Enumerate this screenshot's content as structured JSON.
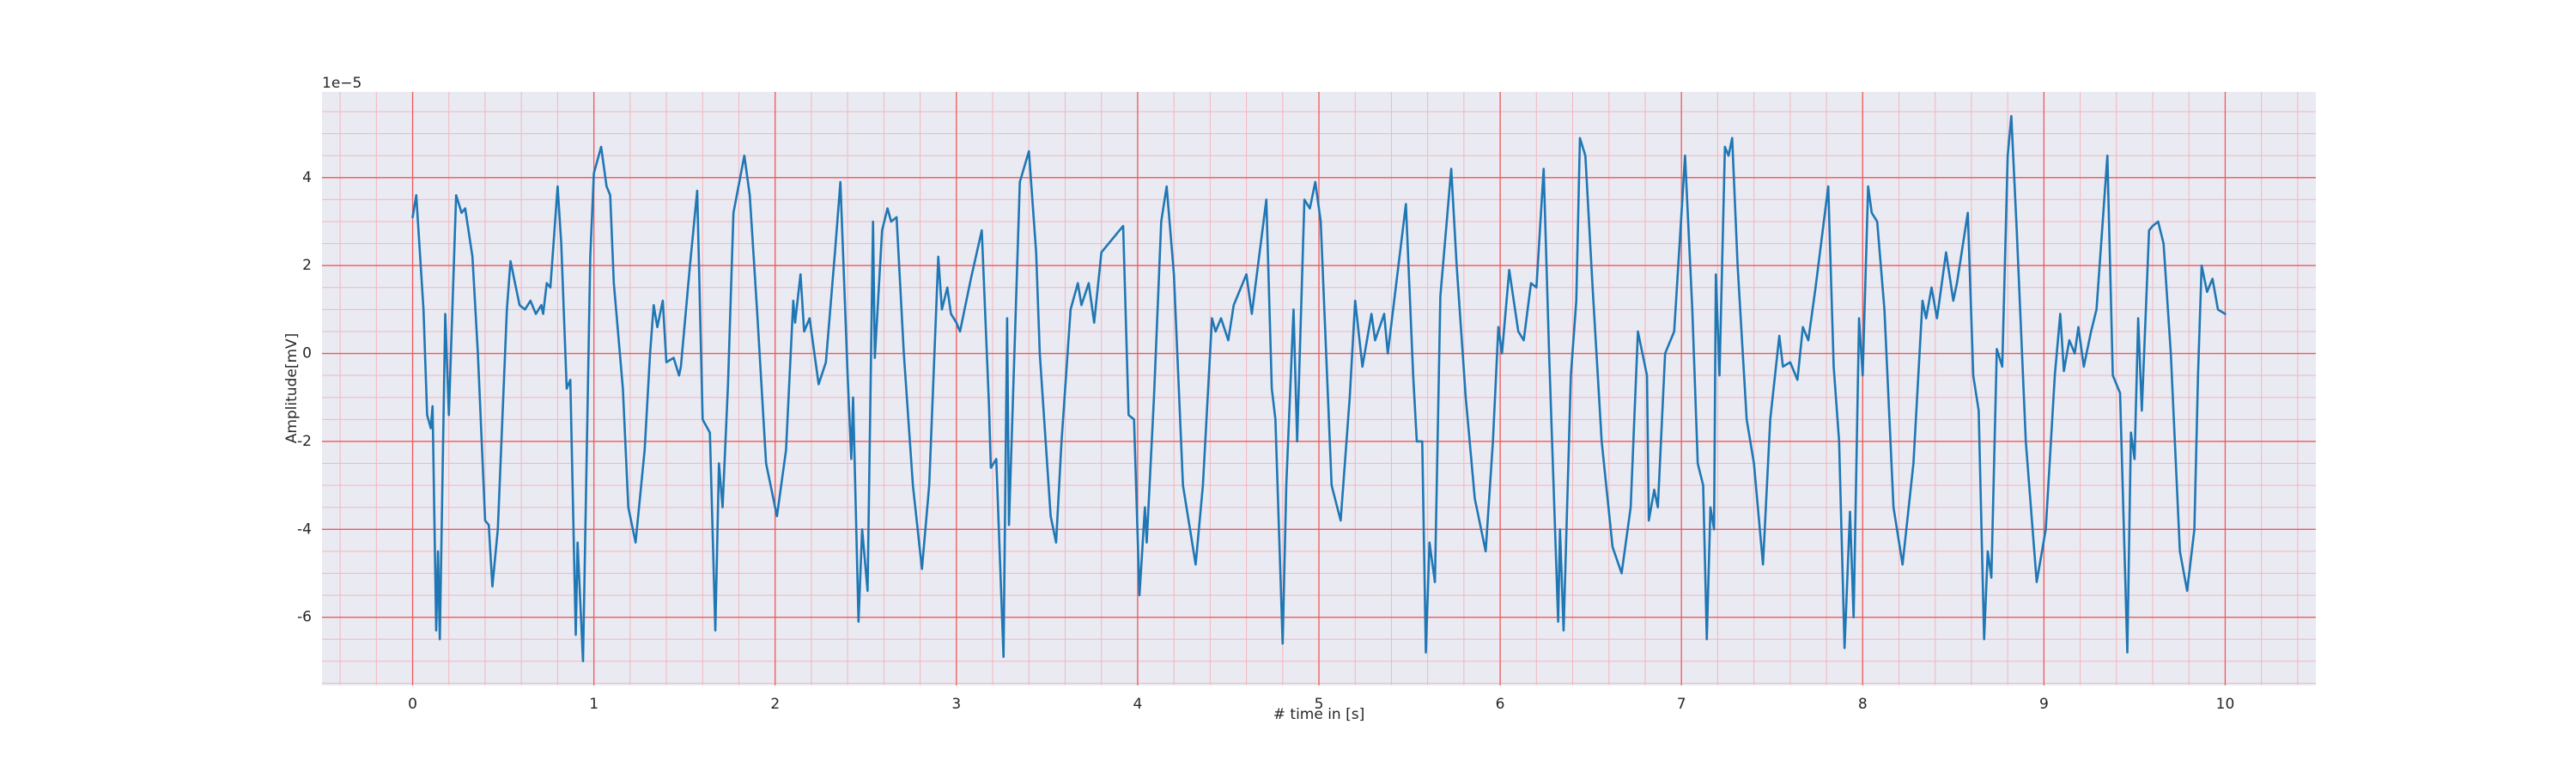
{
  "chart_data": {
    "type": "line",
    "xlabel": "# time in [s]",
    "ylabel": "Amplitude[mV]",
    "y_offset_label": "1e−5",
    "color": "#1f77b4",
    "grid": true,
    "minor_grid": true,
    "xlim": [
      -0.5,
      10.5
    ],
    "ylim": [
      -7.55,
      5.95
    ],
    "xticks": [
      0,
      1,
      2,
      3,
      4,
      5,
      6,
      7,
      8,
      9,
      10
    ],
    "yticks": [
      -6,
      -4,
      -2,
      0,
      2,
      4
    ],
    "x": [
      0,
      0.02,
      0.06,
      0.08,
      0.1,
      0.11,
      0.13,
      0.14,
      0.15,
      0.18,
      0.2,
      0.24,
      0.27,
      0.29,
      0.33,
      0.36,
      0.4,
      0.42,
      0.44,
      0.47,
      0.52,
      0.54,
      0.59,
      0.62,
      0.65,
      0.68,
      0.71,
      0.72,
      0.74,
      0.76,
      0.8,
      0.82,
      0.85,
      0.87,
      0.9,
      0.91,
      0.94,
      0.98,
      1.0,
      1.04,
      1.07,
      1.09,
      1.11,
      1.16,
      1.19,
      1.23,
      1.28,
      1.31,
      1.33,
      1.35,
      1.38,
      1.4,
      1.44,
      1.47,
      1.48,
      1.53,
      1.57,
      1.6,
      1.64,
      1.67,
      1.69,
      1.71,
      1.74,
      1.77,
      1.83,
      1.86,
      1.9,
      1.95,
      2.01,
      2.06,
      2.1,
      2.11,
      2.14,
      2.16,
      2.19,
      2.24,
      2.28,
      2.33,
      2.36,
      2.4,
      2.42,
      2.43,
      2.46,
      2.48,
      2.51,
      2.54,
      2.55,
      2.59,
      2.62,
      2.64,
      2.67,
      2.71,
      2.76,
      2.81,
      2.85,
      2.9,
      2.92,
      2.95,
      2.97,
      3.0,
      3.02,
      3.08,
      3.14,
      3.18,
      3.19,
      3.22,
      3.26,
      3.28,
      3.29,
      3.35,
      3.4,
      3.44,
      3.46,
      3.52,
      3.55,
      3.58,
      3.63,
      3.67,
      3.69,
      3.73,
      3.76,
      3.8,
      3.86,
      3.92,
      3.95,
      3.98,
      4.01,
      4.04,
      4.05,
      4.09,
      4.13,
      4.16,
      4.2,
      4.25,
      4.32,
      4.36,
      4.41,
      4.43,
      4.46,
      4.5,
      4.53,
      4.6,
      4.63,
      4.71,
      4.74,
      4.76,
      4.8,
      4.82,
      4.86,
      4.88,
      4.92,
      4.95,
      4.98,
      5.01,
      5.07,
      5.12,
      5.17,
      5.2,
      5.24,
      5.29,
      5.31,
      5.36,
      5.38,
      5.48,
      5.52,
      5.54,
      5.57,
      5.59,
      5.61,
      5.64,
      5.67,
      5.73,
      5.76,
      5.81,
      5.86,
      5.92,
      5.96,
      5.99,
      6.01,
      6.05,
      6.1,
      6.13,
      6.17,
      6.2,
      6.24,
      6.27,
      6.32,
      6.33,
      6.35,
      6.39,
      6.42,
      6.44,
      6.47,
      6.51,
      6.56,
      6.62,
      6.67,
      6.72,
      6.76,
      6.81,
      6.82,
      6.85,
      6.87,
      6.91,
      6.96,
      7.02,
      7.06,
      7.09,
      7.12,
      7.14,
      7.16,
      7.18,
      7.19,
      7.21,
      7.24,
      7.26,
      7.28,
      7.31,
      7.36,
      7.4,
      7.45,
      7.49,
      7.54,
      7.56,
      7.6,
      7.64,
      7.67,
      7.7,
      7.74,
      7.81,
      7.84,
      7.87,
      7.9,
      7.93,
      7.95,
      7.98,
      8.0,
      8.03,
      8.05,
      8.08,
      8.12,
      8.17,
      8.22,
      8.28,
      8.33,
      8.35,
      8.38,
      8.41,
      8.46,
      8.5,
      8.52,
      8.58,
      8.61,
      8.64,
      8.67,
      8.69,
      8.71,
      8.74,
      8.77,
      8.8,
      8.82,
      8.85,
      8.9,
      8.96,
      9.01,
      9.06,
      9.09,
      9.11,
      9.14,
      9.17,
      9.19,
      9.22,
      9.26,
      9.29,
      9.35,
      9.38,
      9.42,
      9.46,
      9.48,
      9.5,
      9.52,
      9.54,
      9.58,
      9.6,
      9.63,
      9.66,
      9.7,
      9.75,
      9.79,
      9.83,
      9.85,
      9.87,
      9.9,
      9.93,
      9.96,
      10.0
    ],
    "values": [
      3.1,
      3.6,
      1.0,
      -1.4,
      -1.7,
      -1.2,
      -6.3,
      -4.5,
      -6.5,
      0.9,
      -1.4,
      3.6,
      3.2,
      3.3,
      2.2,
      0.0,
      -3.8,
      -3.9,
      -5.3,
      -4.0,
      1.0,
      2.1,
      1.1,
      1.0,
      1.2,
      0.9,
      1.1,
      0.9,
      1.6,
      1.5,
      3.8,
      2.5,
      -0.8,
      -0.6,
      -6.4,
      -4.3,
      -7.0,
      2.2,
      4.1,
      4.7,
      3.8,
      3.6,
      1.6,
      -0.8,
      -3.5,
      -4.3,
      -2.2,
      0.0,
      1.1,
      0.6,
      1.2,
      -0.2,
      -0.1,
      -0.5,
      -0.3,
      2.0,
      3.7,
      -1.5,
      -1.8,
      -6.3,
      -2.5,
      -3.5,
      -0.7,
      3.2,
      4.5,
      3.6,
      1.0,
      -2.5,
      -3.7,
      -2.2,
      1.2,
      0.7,
      1.8,
      0.5,
      0.8,
      -0.7,
      -0.2,
      2.3,
      3.9,
      -0.5,
      -2.4,
      -1.0,
      -6.1,
      -4.0,
      -5.4,
      3.0,
      -0.1,
      2.8,
      3.3,
      3.0,
      3.1,
      0.0,
      -3.0,
      -4.9,
      -3.0,
      2.2,
      1.0,
      1.5,
      0.9,
      0.7,
      0.5,
      1.7,
      2.8,
      -1.2,
      -2.6,
      -2.4,
      -6.9,
      0.8,
      -3.9,
      3.9,
      4.6,
      2.3,
      0.0,
      -3.7,
      -4.3,
      -2.0,
      1.0,
      1.6,
      1.1,
      1.6,
      0.7,
      2.3,
      2.6,
      2.9,
      -1.4,
      -1.5,
      -5.5,
      -3.5,
      -4.3,
      -1.0,
      3.0,
      3.8,
      1.8,
      -3.0,
      -4.8,
      -3.0,
      0.8,
      0.5,
      0.8,
      0.3,
      1.1,
      1.8,
      0.9,
      3.5,
      -0.8,
      -1.5,
      -6.6,
      -3.0,
      1.0,
      -2.0,
      3.5,
      3.3,
      3.9,
      3.0,
      -3.0,
      -3.8,
      -1.0,
      1.2,
      -0.3,
      0.9,
      0.3,
      0.9,
      0.0,
      3.4,
      -0.5,
      -2.0,
      -2.0,
      -6.8,
      -4.3,
      -5.2,
      1.3,
      4.2,
      2.0,
      -1.0,
      -3.3,
      -4.5,
      -2.0,
      0.6,
      0.0,
      1.9,
      0.5,
      0.3,
      1.6,
      1.5,
      4.2,
      0.0,
      -6.1,
      -4.0,
      -6.3,
      -0.5,
      1.2,
      4.9,
      4.5,
      1.5,
      -2.0,
      -4.4,
      -5.0,
      -3.5,
      0.5,
      -0.5,
      -3.8,
      -3.1,
      -3.5,
      0.0,
      0.5,
      4.5,
      1.0,
      -2.5,
      -3.0,
      -6.5,
      -3.5,
      -4.0,
      1.8,
      -0.5,
      4.7,
      4.5,
      4.9,
      2.0,
      -1.5,
      -2.5,
      -4.8,
      -1.5,
      0.4,
      -0.3,
      -0.2,
      -0.6,
      0.6,
      0.3,
      1.5,
      3.8,
      -0.3,
      -2.0,
      -6.7,
      -3.6,
      -6.0,
      0.8,
      -0.5,
      3.8,
      3.2,
      3.0,
      1.0,
      -3.5,
      -4.8,
      -2.5,
      1.2,
      0.8,
      1.5,
      0.8,
      2.3,
      1.2,
      1.6,
      3.2,
      -0.5,
      -1.3,
      -6.5,
      -4.5,
      -5.1,
      0.1,
      -0.3,
      4.5,
      5.4,
      2.8,
      -2.0,
      -5.2,
      -4.0,
      -0.5,
      0.9,
      -0.4,
      0.3,
      0.0,
      0.6,
      -0.3,
      0.5,
      1.0,
      4.5,
      -0.5,
      -0.9,
      -6.8,
      -1.8,
      -2.4,
      0.8,
      -1.3,
      2.8,
      2.9,
      3.0,
      2.5,
      0.0,
      -4.5,
      -5.4,
      -4.0,
      -0.5,
      2.0,
      1.4,
      1.7,
      1.0,
      0.9
    ]
  }
}
